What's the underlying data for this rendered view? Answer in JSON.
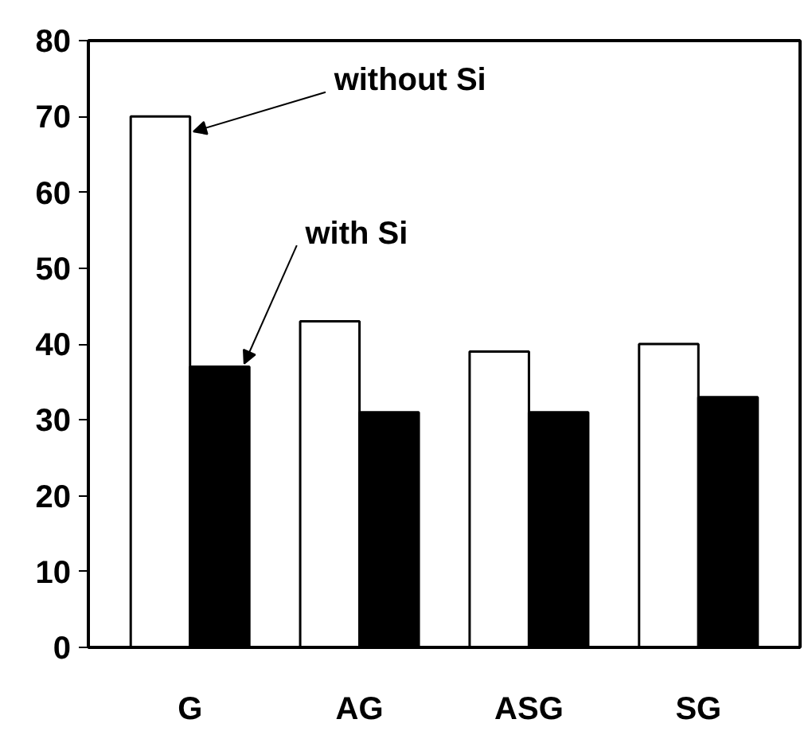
{
  "chart_data": {
    "type": "bar",
    "categories": [
      "G",
      "AG",
      "ASG",
      "SG"
    ],
    "series": [
      {
        "name": "without Si",
        "color": "#ffffff",
        "values": [
          70,
          43,
          39,
          40
        ]
      },
      {
        "name": "with Si",
        "color": "#000000",
        "values": [
          37,
          31,
          31,
          33
        ]
      }
    ],
    "ylim": [
      0,
      80
    ],
    "yticks": [
      0,
      10,
      20,
      30,
      40,
      50,
      60,
      70,
      80
    ],
    "grid": false
  }
}
